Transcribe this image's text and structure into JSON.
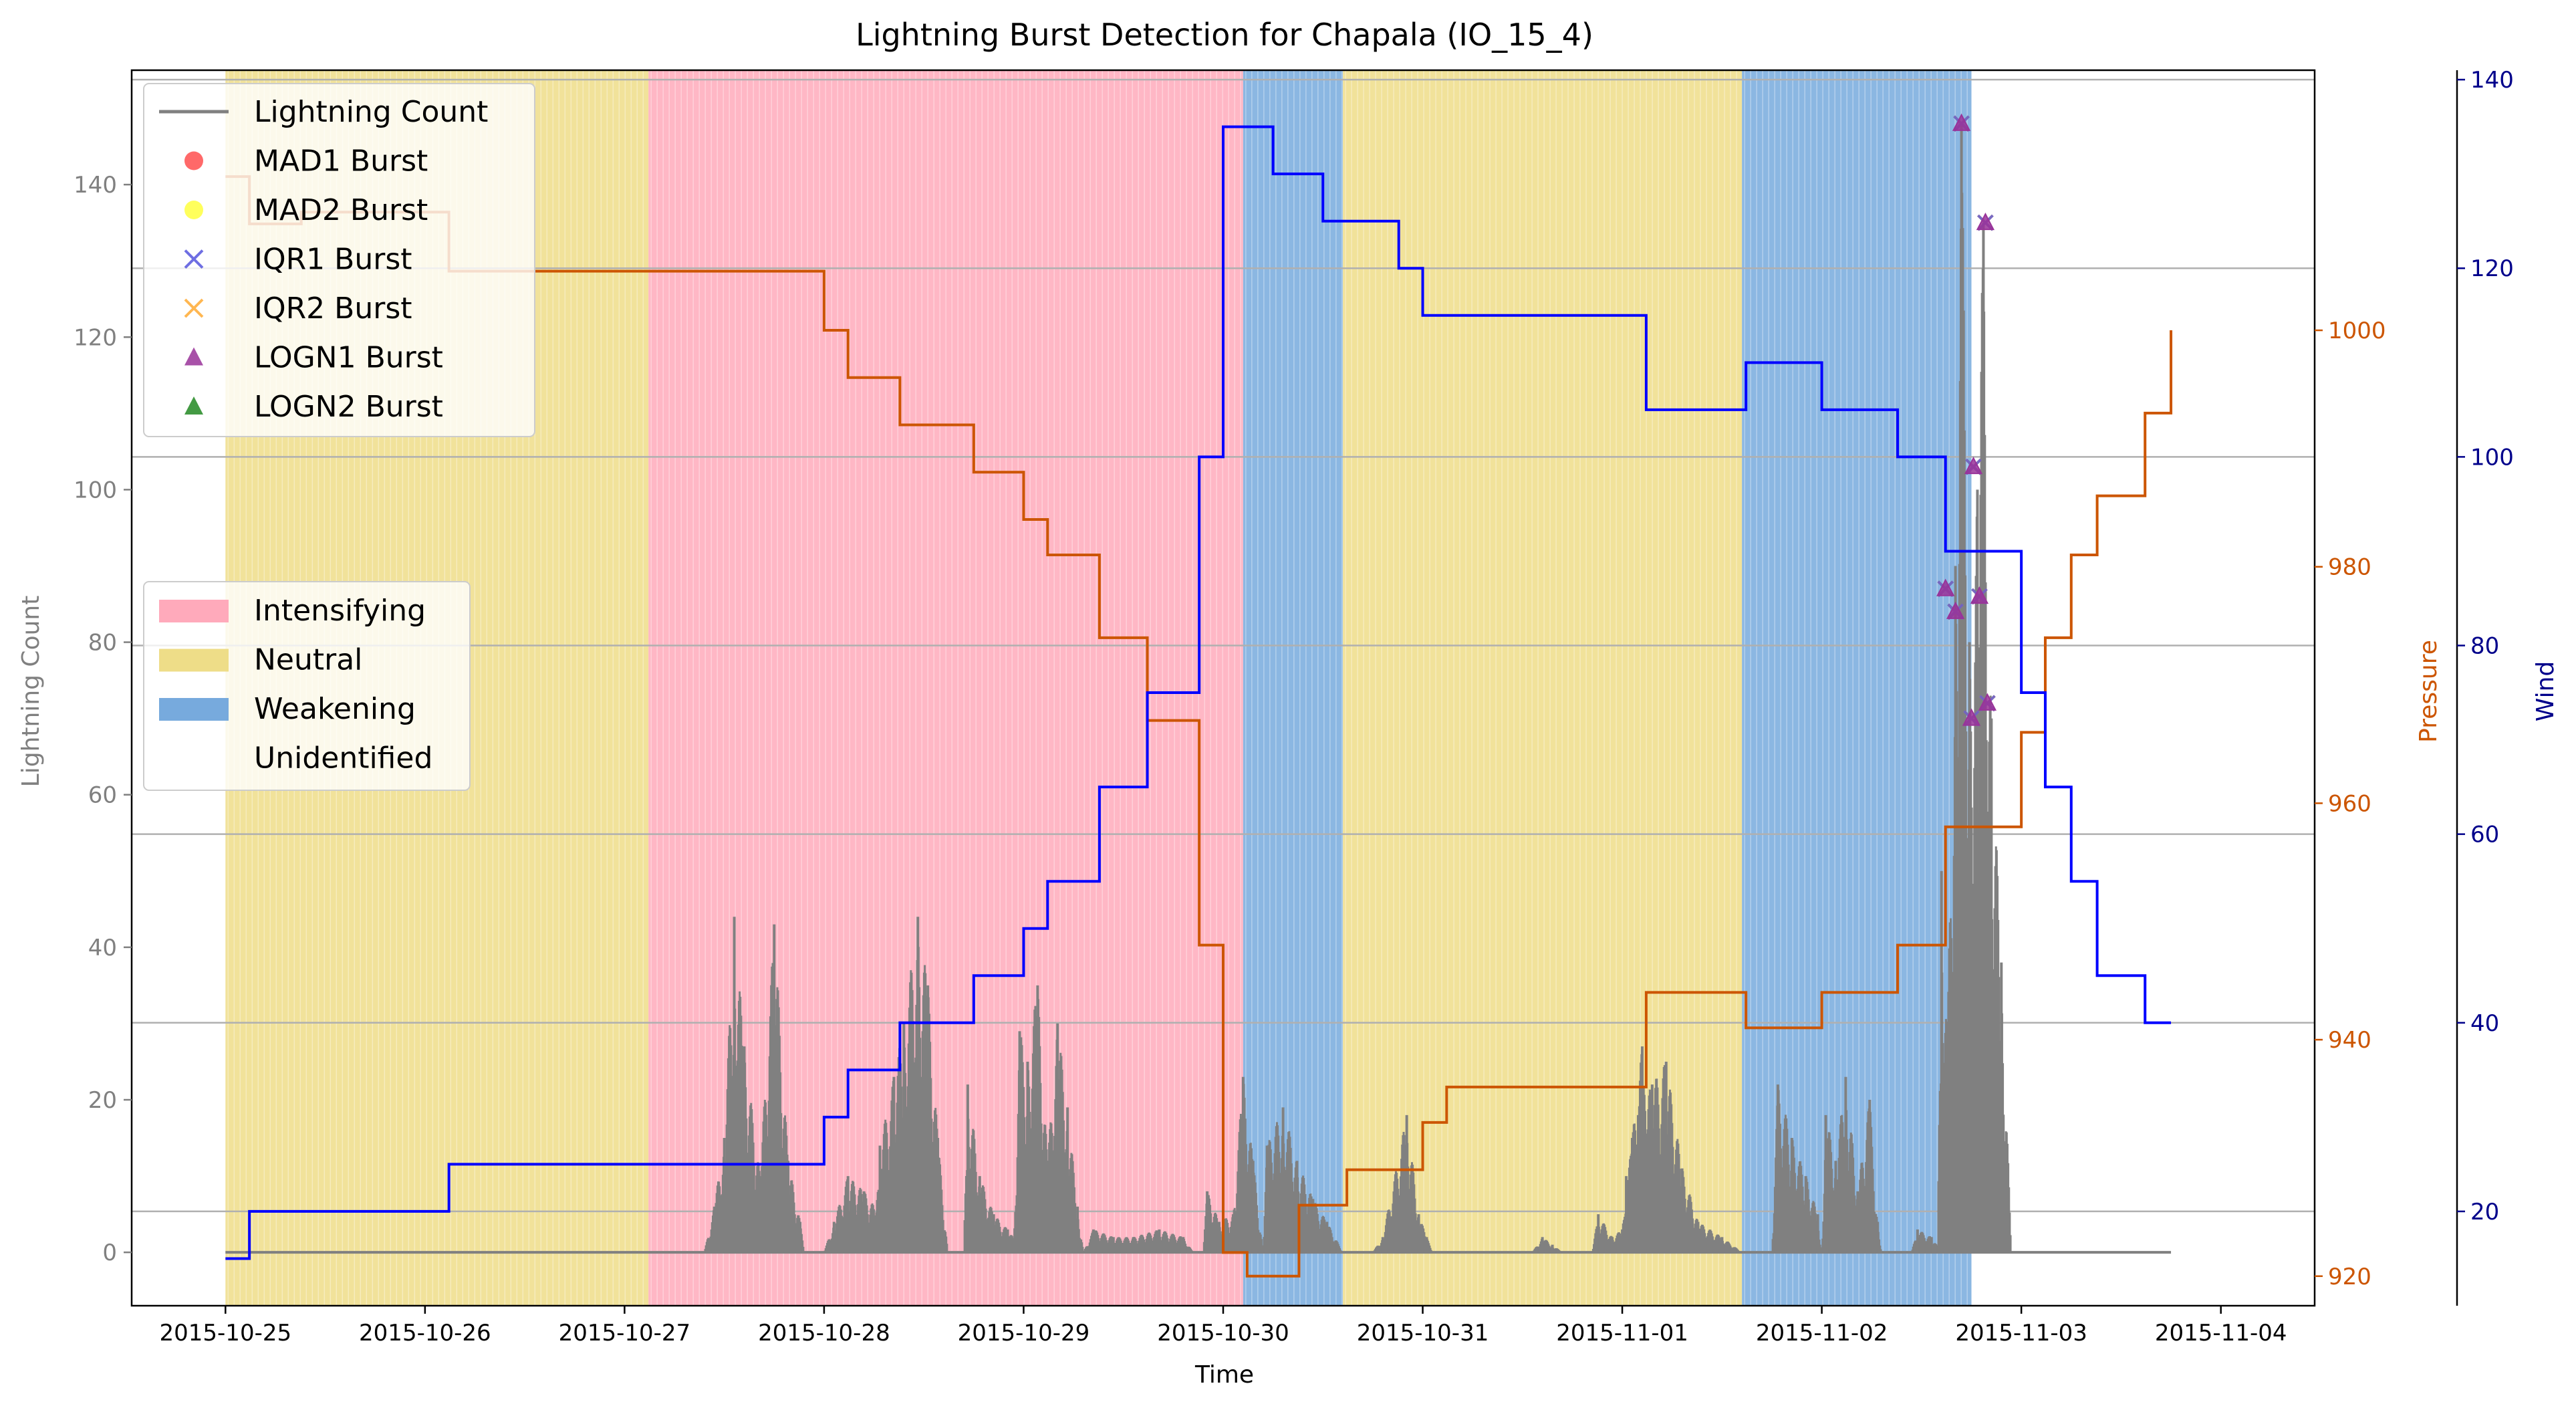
{
  "chart_data": {
    "type": "line",
    "title": "Lightning Burst Detection for Chapala (IO_15_4)",
    "xlabel": "Time",
    "ylabel_left": "Lightning Count",
    "ylabel_pressure": "Pressure",
    "ylabel_wind": "Wind",
    "x_ticks": [
      "2015-10-25",
      "2015-10-26",
      "2015-10-27",
      "2015-10-28",
      "2015-10-29",
      "2015-10-30",
      "2015-10-31",
      "2015-11-01",
      "2015-11-02",
      "2015-11-03",
      "2015-11-04"
    ],
    "xlim_days": [
      -0.47,
      10.47
    ],
    "ylim_left": [
      -7,
      155
    ],
    "ylim_pressure": [
      917.5,
      1022
    ],
    "ylim_wind": [
      10,
      141
    ],
    "left_ticks": [
      0,
      20,
      40,
      60,
      80,
      100,
      120,
      140
    ],
    "pressure_ticks": [
      920,
      940,
      960,
      980,
      1000
    ],
    "wind_ticks": [
      20,
      40,
      60,
      80,
      100,
      120,
      140
    ],
    "grid": "horizontal",
    "colors": {
      "lightning": "#808080",
      "pressure": "#cc5500",
      "wind": "#0000ff",
      "intensifying": "#ffaabb",
      "neutral": "#eedd88",
      "weakening": "#77aadd",
      "mad1": "#ff4444",
      "mad2": "#ffff33",
      "iqr1": "#5555dd",
      "iqr2": "#ffaa33",
      "logn1": "#993399",
      "logn2": "#228822"
    },
    "legend_top": [
      "Lightning Count",
      "MAD1 Burst",
      "MAD2 Burst",
      "IQR1 Burst",
      "IQR2 Burst",
      "LOGN1 Burst",
      "LOGN2 Burst"
    ],
    "legend_bottom": [
      "Intensifying",
      "Neutral",
      "Weakening",
      "Unidentified"
    ],
    "stages": [
      {
        "label": "Neutral",
        "start": 0.0,
        "end": 2.12
      },
      {
        "label": "Intensifying",
        "start": 2.12,
        "end": 5.1
      },
      {
        "label": "Weakening",
        "start": 5.1,
        "end": 5.6
      },
      {
        "label": "Neutral",
        "start": 5.6,
        "end": 7.6
      },
      {
        "label": "Weakening",
        "start": 7.6,
        "end": 8.75
      }
    ],
    "pressure_series": [
      [
        0.0,
        1013
      ],
      [
        0.12,
        1013
      ],
      [
        0.12,
        1009
      ],
      [
        0.38,
        1009
      ],
      [
        0.38,
        1010
      ],
      [
        1.12,
        1010
      ],
      [
        1.12,
        1005
      ],
      [
        3.0,
        1005
      ],
      [
        3.0,
        1000
      ],
      [
        3.12,
        1000
      ],
      [
        3.12,
        996
      ],
      [
        3.38,
        996
      ],
      [
        3.38,
        992
      ],
      [
        3.75,
        992
      ],
      [
        3.75,
        988
      ],
      [
        4.0,
        988
      ],
      [
        4.0,
        984
      ],
      [
        4.12,
        984
      ],
      [
        4.12,
        981
      ],
      [
        4.38,
        981
      ],
      [
        4.38,
        974
      ],
      [
        4.62,
        974
      ],
      [
        4.62,
        967
      ],
      [
        4.88,
        967
      ],
      [
        4.88,
        948
      ],
      [
        5.0,
        948
      ],
      [
        5.0,
        922
      ],
      [
        5.12,
        922
      ],
      [
        5.12,
        920
      ],
      [
        5.38,
        920
      ],
      [
        5.38,
        926
      ],
      [
        5.62,
        926
      ],
      [
        5.62,
        929
      ],
      [
        6.0,
        929
      ],
      [
        6.0,
        933
      ],
      [
        6.12,
        933
      ],
      [
        6.12,
        936
      ],
      [
        7.12,
        936
      ],
      [
        7.12,
        944
      ],
      [
        7.62,
        944
      ],
      [
        7.62,
        941
      ],
      [
        8.0,
        941
      ],
      [
        8.0,
        944
      ],
      [
        8.38,
        944
      ],
      [
        8.38,
        948
      ],
      [
        8.62,
        948
      ],
      [
        8.62,
        958
      ],
      [
        9.0,
        958
      ],
      [
        9.0,
        966
      ],
      [
        9.12,
        966
      ],
      [
        9.12,
        974
      ],
      [
        9.25,
        974
      ],
      [
        9.25,
        981
      ],
      [
        9.38,
        981
      ],
      [
        9.38,
        986
      ],
      [
        9.62,
        986
      ],
      [
        9.62,
        993
      ],
      [
        9.75,
        993
      ],
      [
        9.75,
        1000
      ]
    ],
    "wind_series": [
      [
        0.0,
        15
      ],
      [
        0.12,
        15
      ],
      [
        0.12,
        20
      ],
      [
        1.12,
        20
      ],
      [
        1.12,
        25
      ],
      [
        3.0,
        25
      ],
      [
        3.0,
        30
      ],
      [
        3.12,
        30
      ],
      [
        3.12,
        35
      ],
      [
        3.38,
        35
      ],
      [
        3.38,
        40
      ],
      [
        3.75,
        40
      ],
      [
        3.75,
        45
      ],
      [
        4.0,
        45
      ],
      [
        4.0,
        50
      ],
      [
        4.12,
        50
      ],
      [
        4.12,
        55
      ],
      [
        4.38,
        55
      ],
      [
        4.38,
        65
      ],
      [
        4.62,
        65
      ],
      [
        4.62,
        75
      ],
      [
        4.88,
        75
      ],
      [
        4.88,
        100
      ],
      [
        5.0,
        100
      ],
      [
        5.0,
        135
      ],
      [
        5.25,
        135
      ],
      [
        5.25,
        130
      ],
      [
        5.5,
        130
      ],
      [
        5.5,
        125
      ],
      [
        5.88,
        125
      ],
      [
        5.88,
        120
      ],
      [
        6.0,
        120
      ],
      [
        6.0,
        115
      ],
      [
        7.12,
        115
      ],
      [
        7.12,
        105
      ],
      [
        7.62,
        105
      ],
      [
        7.62,
        110
      ],
      [
        8.0,
        110
      ],
      [
        8.0,
        105
      ],
      [
        8.38,
        105
      ],
      [
        8.38,
        100
      ],
      [
        8.62,
        100
      ],
      [
        8.62,
        90
      ],
      [
        9.0,
        90
      ],
      [
        9.0,
        75
      ],
      [
        9.12,
        75
      ],
      [
        9.12,
        65
      ],
      [
        9.25,
        65
      ],
      [
        9.25,
        55
      ],
      [
        9.38,
        55
      ],
      [
        9.38,
        45
      ],
      [
        9.62,
        45
      ],
      [
        9.62,
        40
      ],
      [
        9.75,
        40
      ]
    ],
    "lightning_clusters": [
      {
        "start": 2.4,
        "end": 2.9,
        "peaks": [
          [
            2.45,
            6
          ],
          [
            2.5,
            15
          ],
          [
            2.55,
            44
          ],
          [
            2.6,
            27
          ],
          [
            2.68,
            10
          ],
          [
            2.75,
            43
          ],
          [
            2.82,
            12
          ],
          [
            2.88,
            4
          ]
        ]
      },
      {
        "start": 3.0,
        "end": 3.45,
        "peaks": [
          [
            3.05,
            4
          ],
          [
            3.12,
            10
          ],
          [
            3.2,
            8
          ],
          [
            3.28,
            5
          ],
          [
            3.35,
            3
          ]
        ]
      },
      {
        "start": 3.25,
        "end": 3.62,
        "peaks": [
          [
            3.28,
            14
          ],
          [
            3.35,
            23
          ],
          [
            3.4,
            30
          ],
          [
            3.47,
            44
          ],
          [
            3.52,
            35
          ],
          [
            3.57,
            15
          ]
        ]
      },
      {
        "start": 3.7,
        "end": 4.0,
        "peaks": [
          [
            3.72,
            22
          ],
          [
            3.78,
            10
          ],
          [
            3.85,
            5
          ],
          [
            3.92,
            3
          ]
        ]
      },
      {
        "start": 3.95,
        "end": 4.3,
        "peaks": [
          [
            3.98,
            29
          ],
          [
            4.02,
            25
          ],
          [
            4.07,
            35
          ],
          [
            4.12,
            12
          ],
          [
            4.17,
            30
          ],
          [
            4.22,
            19
          ],
          [
            4.27,
            6
          ]
        ]
      },
      {
        "start": 4.3,
        "end": 4.85,
        "peaks": [
          [
            4.35,
            3
          ],
          [
            4.45,
            2
          ],
          [
            4.55,
            2
          ],
          [
            4.68,
            3
          ],
          [
            4.8,
            2
          ]
        ]
      },
      {
        "start": 4.9,
        "end": 5.2,
        "peaks": [
          [
            4.92,
            8
          ],
          [
            4.98,
            4
          ],
          [
            5.05,
            5
          ],
          [
            5.1,
            23
          ],
          [
            5.15,
            12
          ]
        ]
      },
      {
        "start": 5.2,
        "end": 5.6,
        "peaks": [
          [
            5.22,
            14
          ],
          [
            5.3,
            19
          ],
          [
            5.37,
            12
          ],
          [
            5.45,
            7
          ],
          [
            5.52,
            4
          ]
        ]
      },
      {
        "start": 5.75,
        "end": 6.05,
        "peaks": [
          [
            5.8,
            2
          ],
          [
            5.92,
            18
          ],
          [
            5.98,
            5
          ],
          [
            6.02,
            2
          ]
        ]
      },
      {
        "start": 6.55,
        "end": 6.7,
        "peaks": [
          [
            6.6,
            2
          ],
          [
            6.65,
            1
          ]
        ]
      },
      {
        "start": 6.85,
        "end": 7.15,
        "peaks": [
          [
            6.88,
            5
          ],
          [
            6.95,
            2
          ],
          [
            7.0,
            3
          ],
          [
            7.05,
            15
          ],
          [
            7.1,
            27
          ]
        ]
      },
      {
        "start": 7.0,
        "end": 7.6,
        "peaks": [
          [
            7.02,
            10
          ],
          [
            7.08,
            18
          ],
          [
            7.15,
            22
          ],
          [
            7.22,
            25
          ],
          [
            7.3,
            11
          ],
          [
            7.38,
            4
          ],
          [
            7.5,
            2
          ]
        ]
      },
      {
        "start": 7.75,
        "end": 8.0,
        "peaks": [
          [
            7.78,
            22
          ],
          [
            7.85,
            15
          ],
          [
            7.92,
            10
          ],
          [
            7.98,
            5
          ]
        ]
      },
      {
        "start": 8.0,
        "end": 8.3,
        "peaks": [
          [
            8.02,
            18
          ],
          [
            8.07,
            12
          ],
          [
            8.12,
            23
          ],
          [
            8.18,
            8
          ],
          [
            8.24,
            20
          ],
          [
            8.28,
            4
          ]
        ]
      },
      {
        "start": 8.45,
        "end": 8.6,
        "peaks": [
          [
            8.48,
            3
          ],
          [
            8.55,
            2
          ]
        ]
      },
      {
        "start": 8.58,
        "end": 8.95,
        "peaks": [
          [
            8.6,
            50
          ],
          [
            8.63,
            28
          ],
          [
            8.67,
            90
          ],
          [
            8.7,
            148
          ],
          [
            8.74,
            80
          ],
          [
            8.78,
            100
          ],
          [
            8.81,
            135
          ],
          [
            8.85,
            70
          ],
          [
            8.9,
            38
          ]
        ]
      }
    ],
    "bursts": [
      {
        "x": 8.7,
        "y": 148,
        "type": "both"
      },
      {
        "x": 8.62,
        "y": 87,
        "type": "both"
      },
      {
        "x": 8.67,
        "y": 84,
        "type": "both"
      },
      {
        "x": 8.76,
        "y": 103,
        "type": "both"
      },
      {
        "x": 8.82,
        "y": 135,
        "type": "both"
      },
      {
        "x": 8.79,
        "y": 86,
        "type": "both"
      },
      {
        "x": 8.75,
        "y": 70,
        "type": "both"
      },
      {
        "x": 8.83,
        "y": 72,
        "type": "both"
      }
    ]
  }
}
